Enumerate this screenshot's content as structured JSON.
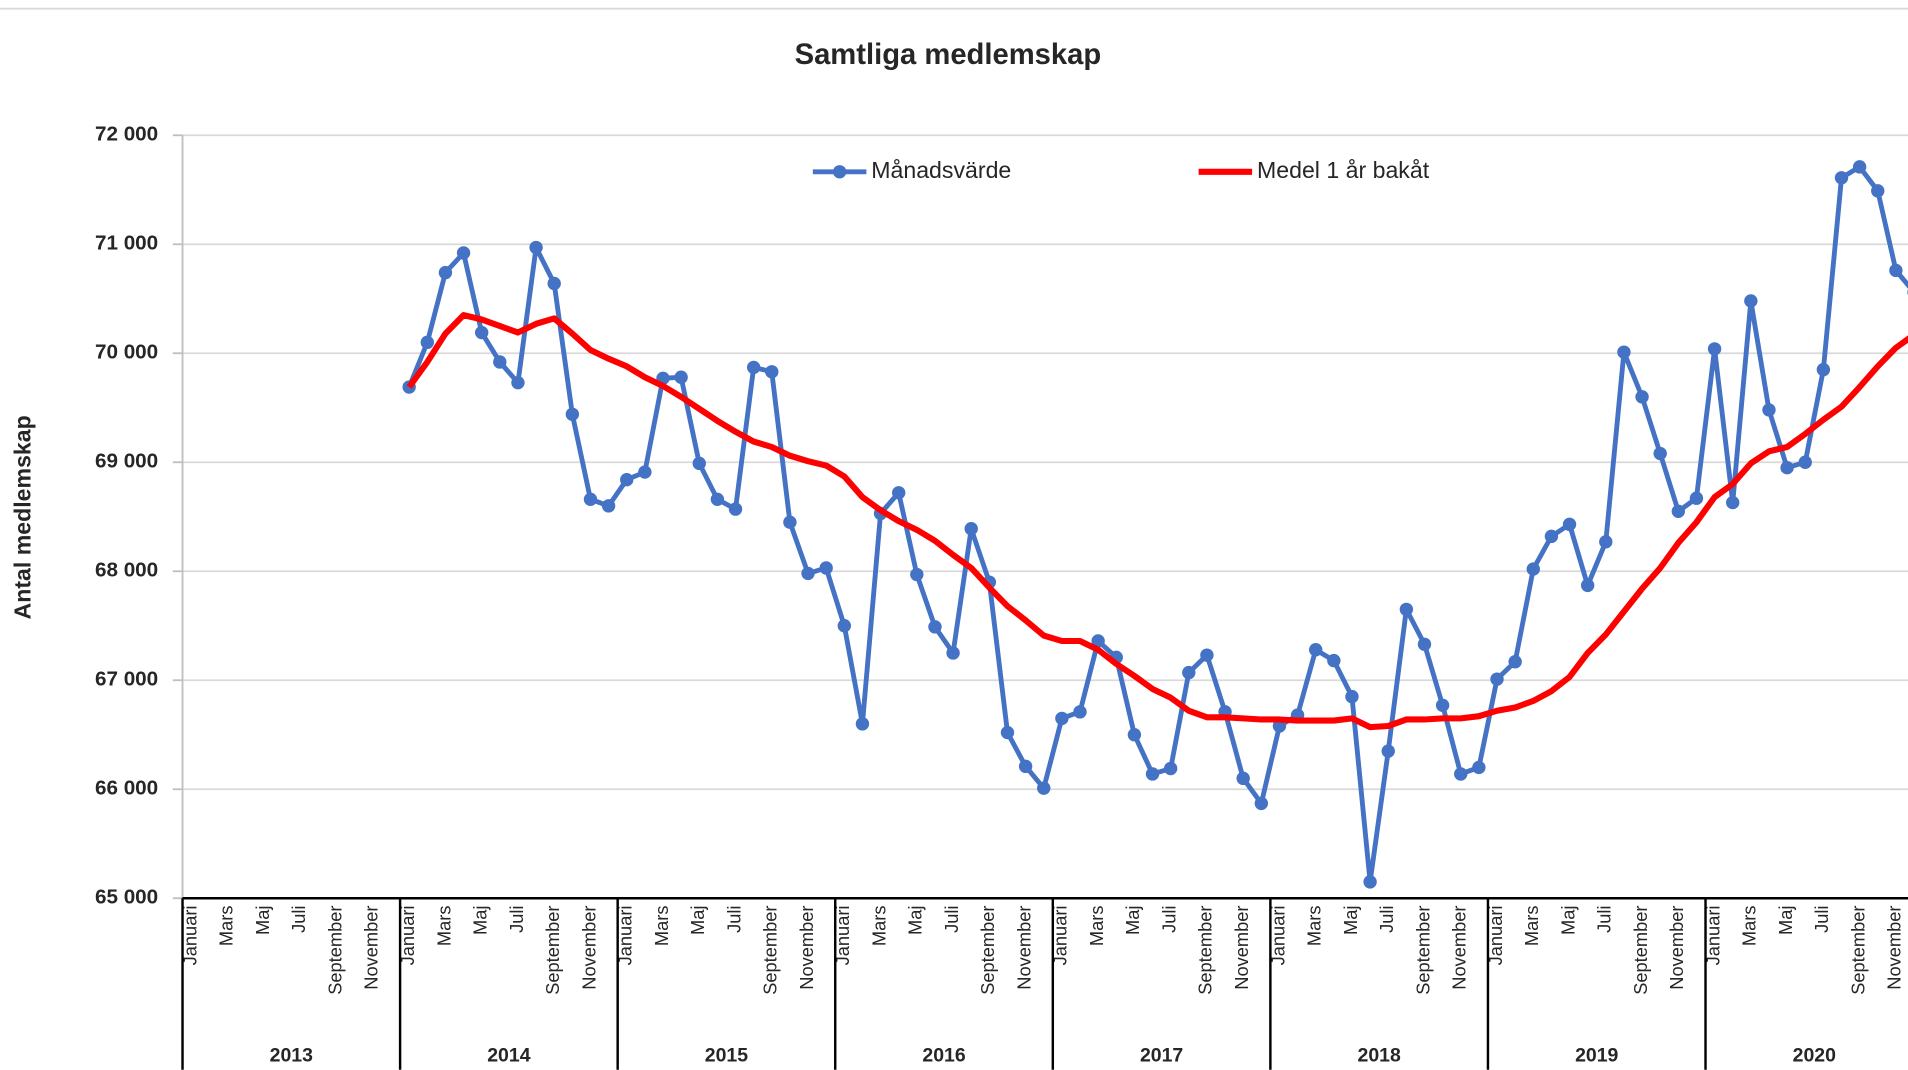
{
  "chart_data": {
    "type": "line",
    "title": "Samtliga medlemskap",
    "y_label": "Antal medlemskap",
    "categories": [
      "Januari",
      null,
      "Mars",
      null,
      "Maj",
      null,
      "Juli",
      null,
      "September",
      null,
      "November",
      null,
      "Januari",
      null,
      "Mars",
      null,
      "Maj",
      null,
      "Juli",
      null,
      "September",
      null,
      "November",
      null,
      "Januari",
      null,
      "Mars",
      null,
      "Maj",
      null,
      "Juli",
      null,
      "September",
      null,
      "November",
      null,
      "Januari",
      null,
      "Mars",
      null,
      "Maj",
      null,
      "Juli",
      null,
      "September",
      null,
      "November",
      null,
      "Januari",
      null,
      "Mars",
      null,
      "Maj",
      null,
      "Juli",
      null,
      "September",
      null,
      "November",
      null,
      "Januari",
      null,
      "Mars",
      null,
      "Maj",
      null,
      "Juli",
      null,
      "September",
      null,
      "November",
      null,
      "Januari",
      null,
      "Mars",
      null,
      "Maj",
      null,
      "Juli",
      null,
      "September",
      null,
      "November",
      null,
      "Januari",
      null,
      "Mars",
      null,
      "Maj",
      null,
      "Juli",
      null,
      "September",
      null,
      "November",
      null
    ],
    "year_groups": [
      "2013",
      "2014",
      "2015",
      "2016",
      "2017",
      "2018",
      "2019",
      "2020"
    ],
    "series": [
      {
        "name": "Månadsvärde",
        "color": "#4472c4",
        "markers": true,
        "values": [
          null,
          null,
          null,
          null,
          null,
          null,
          null,
          null,
          null,
          null,
          null,
          null,
          69690,
          70100,
          70740,
          70920,
          70190,
          69920,
          69730,
          70970,
          70640,
          69440,
          68660,
          68600,
          68840,
          68910,
          69770,
          69780,
          68990,
          68660,
          68570,
          69870,
          69830,
          68450,
          67980,
          68030,
          67500,
          66600,
          68530,
          68720,
          67970,
          67490,
          67250,
          68390,
          67900,
          66520,
          66210,
          66010,
          66650,
          66710,
          67360,
          67210,
          66500,
          66140,
          66190,
          67070,
          67230,
          66710,
          66100,
          65870,
          66580,
          66680,
          67280,
          67180,
          66850,
          65150,
          66350,
          67650,
          67330,
          66770,
          66140,
          66200,
          67010,
          67170,
          68020,
          68320,
          68430,
          67870,
          68270,
          70010,
          69600,
          69080,
          68550,
          68670,
          70040,
          68630,
          70480,
          69480,
          68950,
          69000,
          69850,
          71610,
          71710,
          71490,
          70760,
          70560
        ]
      },
      {
        "name": "Medel 1 år bakåt",
        "color": "#ff0000",
        "markers": false,
        "values": [
          null,
          null,
          null,
          null,
          null,
          null,
          null,
          null,
          null,
          null,
          null,
          null,
          69690,
          69920,
          70180,
          70350,
          70310,
          70250,
          70190,
          70270,
          70320,
          70180,
          70030,
          69950,
          69880,
          69780,
          69700,
          69600,
          69490,
          69380,
          69280,
          69190,
          69140,
          69060,
          69010,
          68970,
          68870,
          68680,
          68560,
          68460,
          68380,
          68280,
          68150,
          68030,
          67850,
          67680,
          67550,
          67410,
          67360,
          67360,
          67280,
          67150,
          67040,
          66920,
          66840,
          66720,
          66660,
          66660,
          66650,
          66640,
          66640,
          66630,
          66630,
          66630,
          66650,
          66570,
          66580,
          66640,
          66640,
          66650,
          66650,
          66670,
          66720,
          66750,
          66810,
          66900,
          67030,
          67250,
          67420,
          67630,
          67840,
          68030,
          68260,
          68450,
          68680,
          68800,
          68990,
          69100,
          69140,
          69260,
          69390,
          69510,
          69690,
          69880,
          70050,
          70170
        ]
      }
    ],
    "ylim": [
      65000,
      72000
    ],
    "yticks": [
      {
        "value": 65000,
        "label": "65 000"
      },
      {
        "value": 66000,
        "label": "66 000"
      },
      {
        "value": 67000,
        "label": "67 000"
      },
      {
        "value": 68000,
        "label": "68 000"
      },
      {
        "value": 69000,
        "label": "69 000"
      },
      {
        "value": 70000,
        "label": "70 000"
      },
      {
        "value": 71000,
        "label": "71 000"
      },
      {
        "value": 72000,
        "label": "72 000"
      }
    ],
    "grid": true,
    "legend": "top"
  }
}
